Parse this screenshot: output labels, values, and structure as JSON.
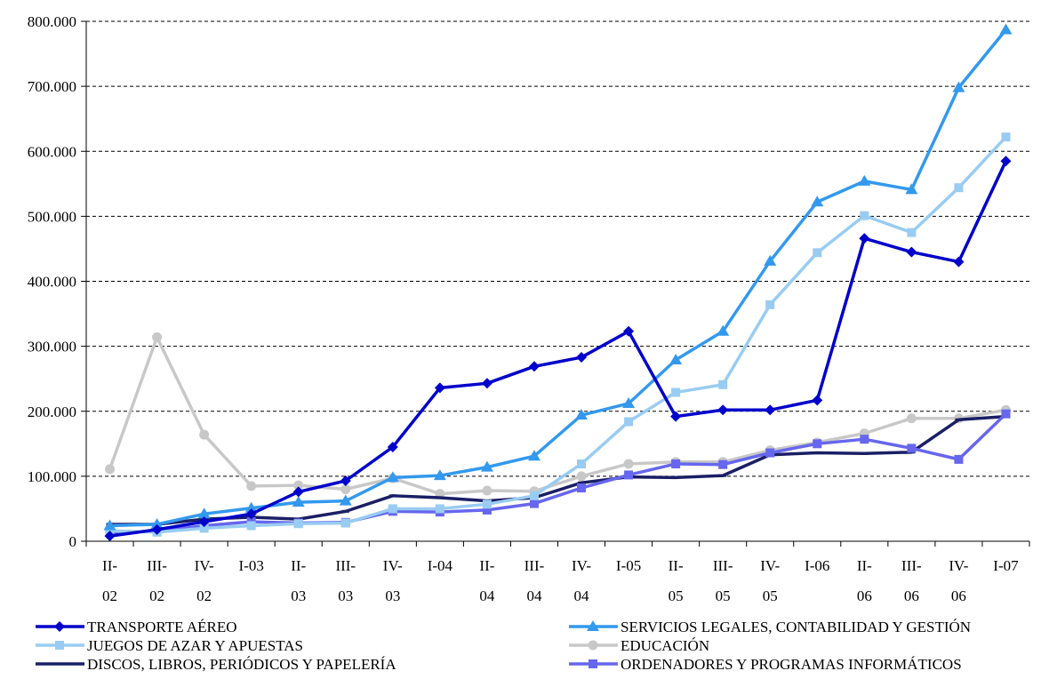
{
  "chart_data": {
    "type": "line",
    "title": "",
    "xlabel": "",
    "ylabel": "",
    "ylim": [
      0,
      800000
    ],
    "yticks": [
      0,
      100000,
      200000,
      300000,
      400000,
      500000,
      600000,
      700000,
      800000
    ],
    "ytick_labels": [
      "0",
      "100.000",
      "200.000",
      "300.000",
      "400.000",
      "500.000",
      "600.000",
      "700.000",
      "800.000"
    ],
    "grid": "horizontal-dashed",
    "legend_position": "bottom",
    "categories": [
      [
        "II-",
        "02"
      ],
      [
        "III-",
        "02"
      ],
      [
        "IV-",
        "02"
      ],
      [
        "I-03",
        ""
      ],
      [
        "II-",
        "03"
      ],
      [
        "III-",
        "03"
      ],
      [
        "IV-",
        "03"
      ],
      [
        "I-04",
        ""
      ],
      [
        "II-",
        "04"
      ],
      [
        "III-",
        "04"
      ],
      [
        "IV-",
        "04"
      ],
      [
        "I-05",
        ""
      ],
      [
        "II-",
        "05"
      ],
      [
        "III-",
        "05"
      ],
      [
        "IV-",
        "05"
      ],
      [
        "I-06",
        ""
      ],
      [
        "II-",
        "06"
      ],
      [
        "III-",
        "06"
      ],
      [
        "IV-",
        "06"
      ],
      [
        "I-07",
        ""
      ]
    ],
    "series": [
      {
        "name": "TRANSPORTE AÉREO",
        "color": "#0000cc",
        "marker": "diamond",
        "values": [
          8000,
          18000,
          30000,
          42000,
          76000,
          93000,
          145000,
          236000,
          243000,
          269000,
          283000,
          323000,
          192000,
          202000,
          202000,
          217000,
          466000,
          445000,
          430000,
          585000
        ]
      },
      {
        "name": "SERVICIOS LEGALES, CONTABILIDAD Y GESTIÓN",
        "color": "#3399ee",
        "marker": "triangle",
        "values": [
          24000,
          26000,
          42000,
          51000,
          60000,
          62000,
          98000,
          101000,
          114000,
          131000,
          194000,
          212000,
          279000,
          323000,
          431000,
          522000,
          554000,
          541000,
          698000,
          787000
        ]
      },
      {
        "name": "JUEGOS DE AZAR Y APUESTAS",
        "color": "#99ccf2",
        "marker": "square",
        "values": [
          16000,
          14000,
          20000,
          24000,
          27000,
          28000,
          50000,
          50000,
          57000,
          70000,
          119000,
          184000,
          229000,
          241000,
          364000,
          444000,
          501000,
          475000,
          544000,
          622000
        ]
      },
      {
        "name": "EDUCACIÓN",
        "color": "#c8c8c8",
        "marker": "circle",
        "values": [
          111000,
          314000,
          164000,
          85000,
          86000,
          80000,
          97000,
          73000,
          78000,
          77000,
          100000,
          119000,
          122000,
          122000,
          140000,
          152000,
          166000,
          189000,
          189000,
          202000
        ]
      },
      {
        "name": "DISCOS, LIBROS, PERIÓDICOS Y PAPELERÍA",
        "color": "#1a1f66",
        "marker": "dash",
        "values": [
          26000,
          26000,
          34000,
          37000,
          34000,
          46000,
          70000,
          67000,
          62000,
          67000,
          90000,
          99000,
          98000,
          101000,
          133000,
          136000,
          135000,
          137000,
          187000,
          192000
        ]
      },
      {
        "name": "ORDENADORES Y PROGRAMAS INFORMÁTICOS",
        "color": "#6666ee",
        "marker": "square",
        "values": [
          14000,
          15000,
          24000,
          30000,
          28000,
          29000,
          46000,
          45000,
          48000,
          58000,
          82000,
          102000,
          119000,
          118000,
          136000,
          150000,
          157000,
          143000,
          126000,
          196000
        ]
      }
    ]
  }
}
